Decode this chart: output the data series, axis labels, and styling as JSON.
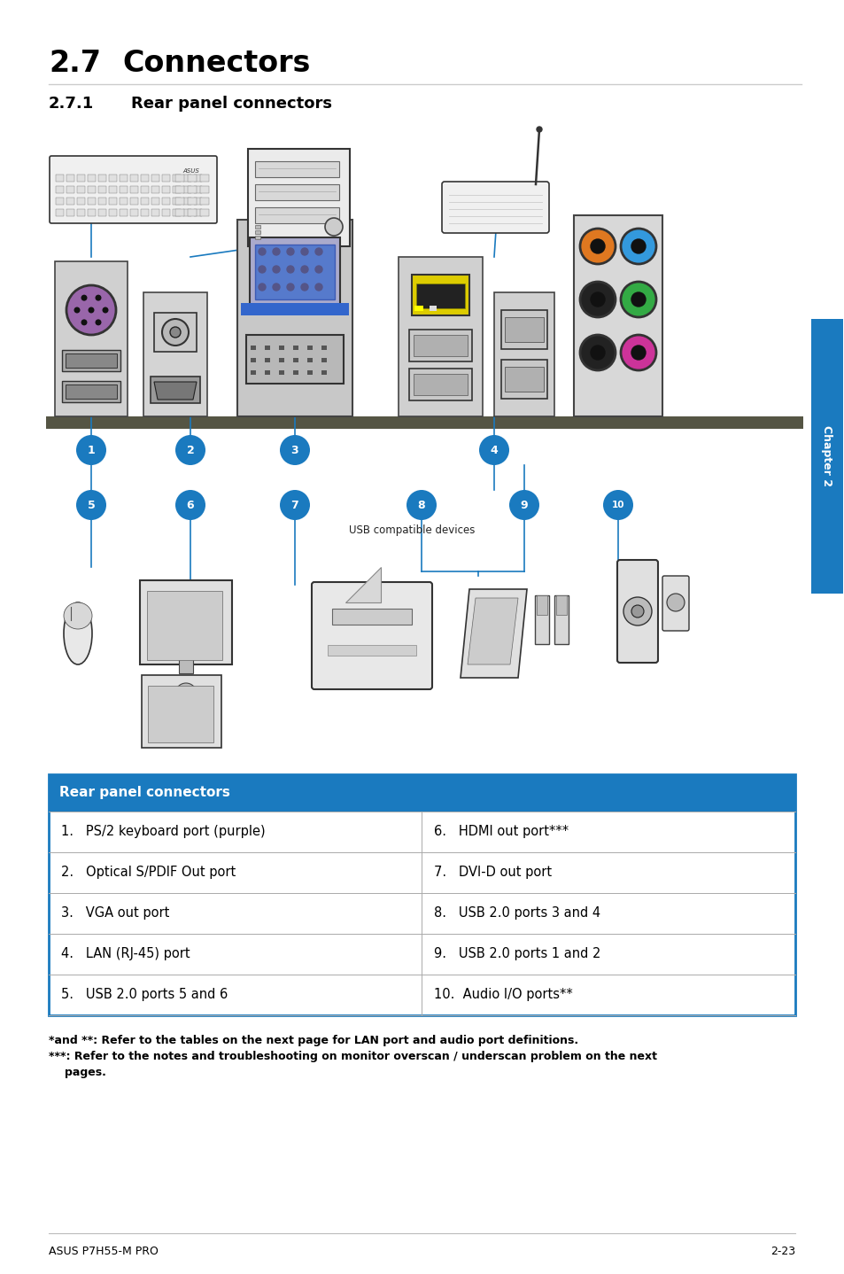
{
  "title_section": "2.7",
  "title_text": "Connectors",
  "subtitle_section": "2.7.1",
  "subtitle_text": "Rear panel connectors",
  "table_header": "Rear panel connectors",
  "table_header_bg": "#1a7abf",
  "table_header_color": "#ffffff",
  "table_border_color": "#aaaaaa",
  "table_items_left": [
    "1.   PS/2 keyboard port (purple)",
    "2.   Optical S/PDIF Out port",
    "3.   VGA out port",
    "4.   LAN (RJ-45) port",
    "5.   USB 2.0 ports 5 and 6"
  ],
  "table_items_right": [
    "6.   HDMI out port***",
    "7.   DVI-D out port",
    "8.   USB 2.0 ports 3 and 4",
    "9.   USB 2.0 ports 1 and 2",
    "10.  Audio I/O ports**"
  ],
  "footnote1": "*and **: Refer to the tables on the next page for LAN port and audio port definitions.",
  "footnote2": "***: Refer to the notes and troubleshooting on monitor overscan / underscan problem on the next",
  "footnote3": "     pages.",
  "footer_left": "ASUS P7H55-M PRO",
  "footer_right": "2-23",
  "chapter_label": "Chapter 2",
  "chapter_bg": "#1a7abf",
  "chapter_color": "#ffffff",
  "bg_color": "#ffffff",
  "text_color": "#000000",
  "usb_label": "USB compatible devices",
  "circle_color": "#1a7abf",
  "shelf_color": "#555544",
  "audio_colors": [
    "#e07820",
    "#3399dd",
    "#33aa44",
    "#222222",
    "#cc3399"
  ],
  "ps2_color": "#9966aa"
}
